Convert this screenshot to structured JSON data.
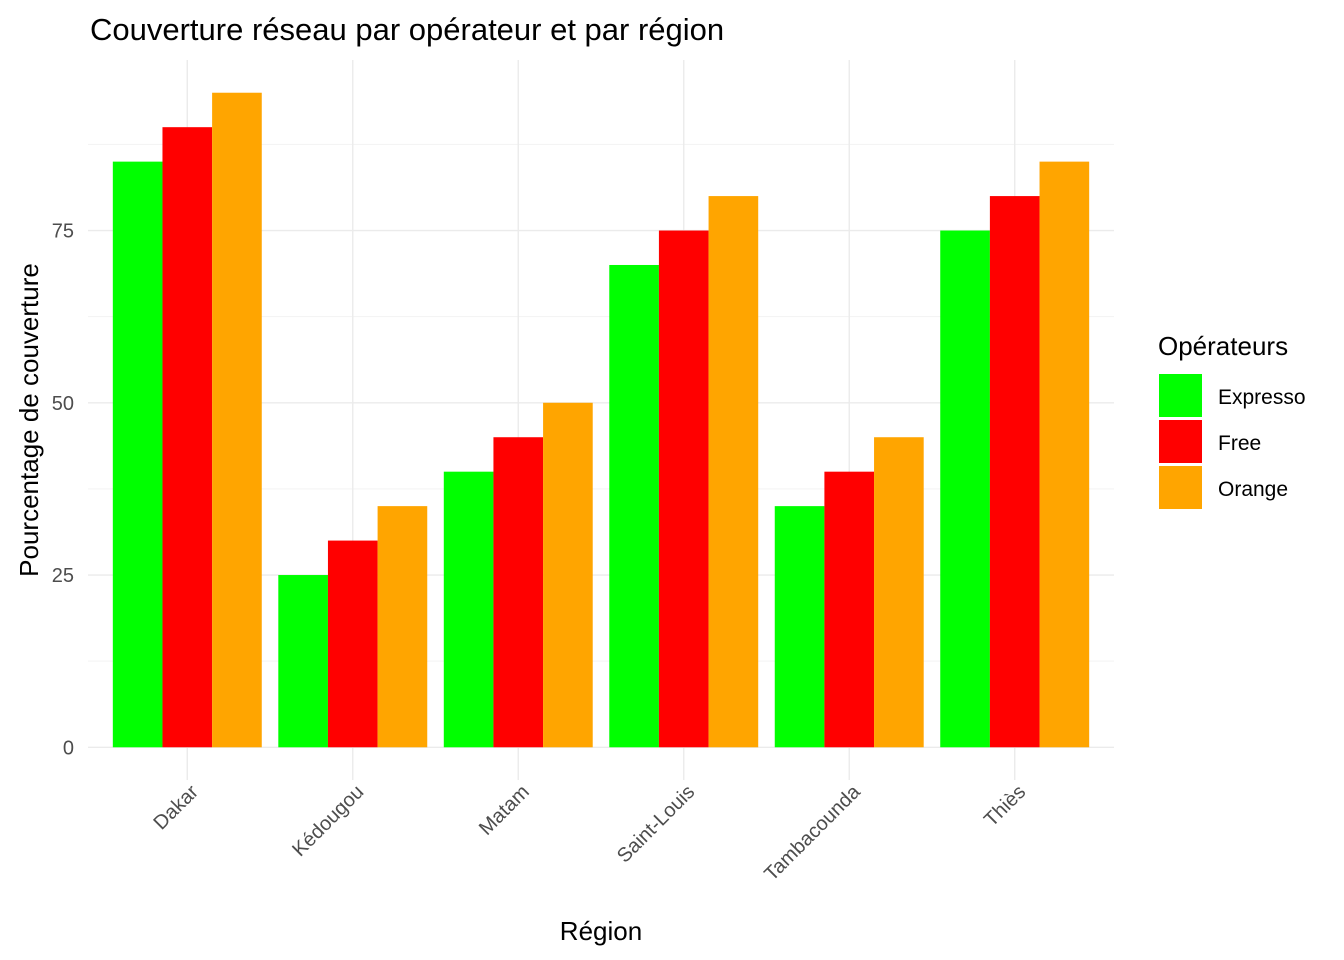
{
  "chart_data": {
    "type": "bar",
    "title": "Couverture réseau par opérateur et par région",
    "xlabel": "Région",
    "ylabel": "Pourcentage de couverture",
    "categories": [
      "Dakar",
      "Kédougou",
      "Matam",
      "Saint-Louis",
      "Tambacounda",
      "Thiès"
    ],
    "series": [
      {
        "name": "Expresso",
        "color": "#00ff00",
        "values": [
          85,
          25,
          40,
          70,
          35,
          75
        ]
      },
      {
        "name": "Free",
        "color": "#ff0000",
        "values": [
          90,
          30,
          45,
          75,
          40,
          80
        ]
      },
      {
        "name": "Orange",
        "color": "#ffa500",
        "values": [
          95,
          35,
          50,
          80,
          45,
          85
        ]
      }
    ],
    "y_ticks": [
      0,
      25,
      50,
      75
    ],
    "ylim": [
      -4.75,
      99.75
    ],
    "grid": true,
    "legend": {
      "title": "Opérateurs",
      "position": "right"
    }
  }
}
